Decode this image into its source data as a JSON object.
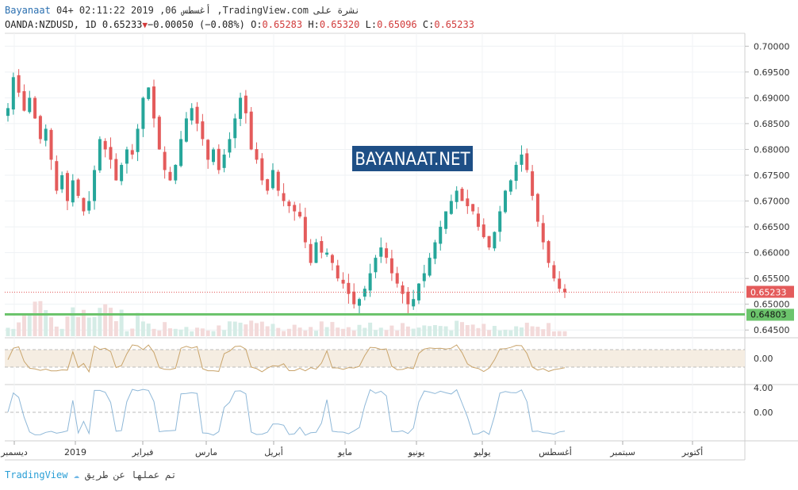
{
  "header": {
    "brand": "Bayanaat",
    "timestamp": "04+ 02:11:22 2019 ,06 أغسطس",
    "published_on": ",TradingView.com نشرة على",
    "symbol": "OANDA:NZDUSD, 1D",
    "last": "0.65233",
    "change": "−0.00050 (−0.08%)",
    "o_label": "O:",
    "o_val": "0.65283",
    "h_label": "H:",
    "h_val": "0.65320",
    "l_label": "L:",
    "l_val": "0.65096",
    "c_label": "C:",
    "c_val": "0.65233"
  },
  "footer": {
    "tv": "TradingView",
    "text": "تم عملها عن طريق"
  },
  "watermark": "BAYANAAT.NET",
  "price_tags": {
    "last": "0.65233",
    "support": "0.64803"
  },
  "osc1": {
    "zero_label": "0.00"
  },
  "osc2": {
    "top_label": "4.00",
    "zero_label": "0.00"
  },
  "colors": {
    "up": "#26a69a",
    "down": "#e45b5b",
    "support": "#6cc46c",
    "osc1": "#c9a46b",
    "osc2": "#8fb8d8",
    "band": "#f5ede2"
  },
  "chart_data": {
    "type": "candlestick",
    "yticks": [
      0.645,
      0.65,
      0.655,
      0.66,
      0.665,
      0.67,
      0.675,
      0.68,
      0.685,
      0.69,
      0.695,
      0.7
    ],
    "ytick_labels": [
      "0.64500",
      "0.65000",
      "0.65500",
      "0.66000",
      "0.66500",
      "0.67000",
      "0.67500",
      "0.68000",
      "0.68500",
      "0.69000",
      "0.69500",
      "0.70000"
    ],
    "ylim": [
      0.6435,
      0.7025
    ],
    "support_level": 0.64803,
    "last_price": 0.65233,
    "x_labels": [
      "ديسمبر",
      "2019",
      "فبراير",
      "مارس",
      "أبريل",
      "مايو",
      "يونيو",
      "يوليو",
      "أغسطس",
      "سبتمبر",
      "أكتوبر"
    ],
    "series": [
      {
        "name": "NZDUSD",
        "path": [
          0.688,
          0.694,
          0.691,
          0.6875,
          0.69,
          0.686,
          0.682,
          0.684,
          0.678,
          0.672,
          0.675,
          0.67,
          0.674,
          0.671,
          0.668,
          0.67,
          0.676,
          0.682,
          0.68,
          0.678,
          0.674,
          0.677,
          0.68,
          0.679,
          0.684,
          0.69,
          0.692,
          0.686,
          0.68,
          0.676,
          0.674,
          0.677,
          0.682,
          0.686,
          0.688,
          0.685,
          0.682,
          0.678,
          0.68,
          0.676,
          0.679,
          0.682,
          0.686,
          0.69,
          0.687,
          0.68,
          0.678,
          0.674,
          0.672,
          0.676,
          0.672,
          0.67,
          0.669,
          0.668,
          0.667,
          0.662,
          0.658,
          0.662,
          0.66,
          0.66,
          0.658,
          0.655,
          0.654,
          0.652,
          0.65,
          0.651,
          0.653,
          0.656,
          0.659,
          0.661,
          0.659,
          0.656,
          0.654,
          0.652,
          0.65,
          0.651,
          0.654,
          0.656,
          0.659,
          0.662,
          0.665,
          0.668,
          0.67,
          0.672,
          0.67,
          0.669,
          0.668,
          0.665,
          0.663,
          0.661,
          0.664,
          0.668,
          0.672,
          0.674,
          0.677,
          0.679,
          0.676,
          0.671,
          0.666,
          0.662,
          0.658,
          0.655,
          0.653,
          0.6523
        ]
      }
    ]
  }
}
